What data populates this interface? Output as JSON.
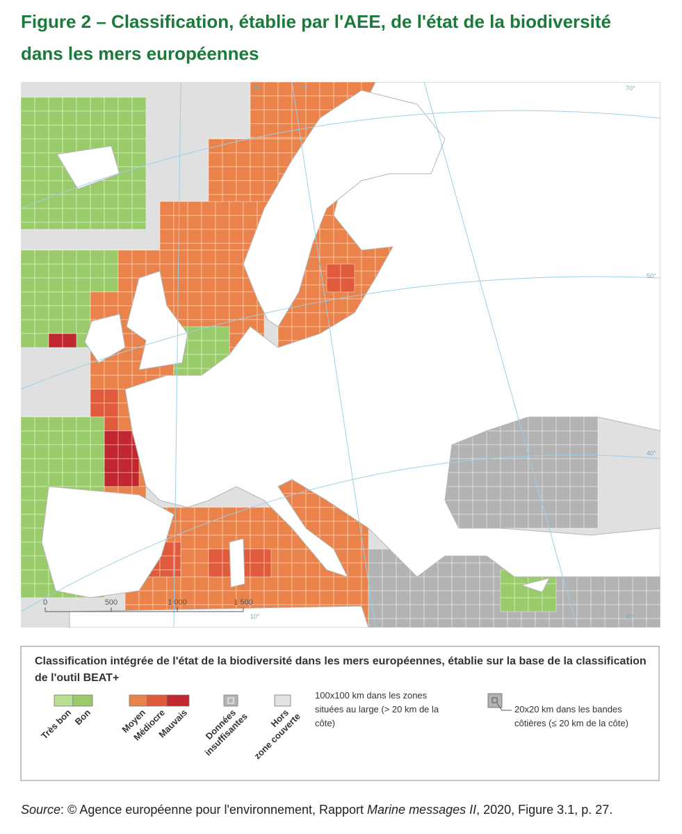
{
  "header": {
    "title": "Figure 2 – Classification, établie par l'AEE, de l'état de la biodiversité dans les mers européennes"
  },
  "map": {
    "graticule_labels": [
      "60°",
      "20°",
      "70°",
      "50°",
      "40°",
      "10°",
      "40°"
    ],
    "scale_labels": [
      "0",
      "500",
      "1 000",
      "1 500"
    ]
  },
  "legend": {
    "title": "Classification intégrée de l'état de la biodiversité dans les mers européennes, établie sur la base de la classification de l'outil BEAT+",
    "items": [
      {
        "label": [
          "Très bon"
        ],
        "color": "#b8df90"
      },
      {
        "label": [
          "Bon"
        ],
        "color": "#9acb6a"
      },
      {
        "label": [
          "Moyen"
        ],
        "color": "#e9834b"
      },
      {
        "label": [
          "Médiocre"
        ],
        "color": "#df5b3b"
      },
      {
        "label": [
          "Mauvais"
        ],
        "color": "#c0272f"
      },
      {
        "label": [
          "Données",
          "insuffisantes"
        ],
        "color": "#b3b3b3"
      },
      {
        "label": [
          "Hors",
          "zone couverte"
        ],
        "color": "#e2e2e2"
      }
    ],
    "offshore": [
      "100x100 km dans les zones",
      "situées au large (> 20 km de la",
      "côte)"
    ],
    "coastal": [
      "20x20 km dans les bandes",
      "côtières (≤ 20 km de la côte)"
    ]
  },
  "source": {
    "label": "Source",
    "before": ": © Agence européenne pour l'environnement, Rapport ",
    "italic": "Marine messages II",
    "after": ", 2020, Figure 3.1, p. 27."
  }
}
